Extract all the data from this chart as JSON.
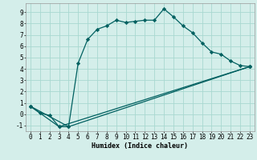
{
  "title": "",
  "xlabel": "Humidex (Indice chaleur)",
  "bg_color": "#d4eeea",
  "grid_color": "#a8d8d0",
  "line_color": "#006060",
  "xlim": [
    -0.5,
    23.5
  ],
  "ylim": [
    -1.5,
    9.8
  ],
  "xticks": [
    0,
    1,
    2,
    3,
    4,
    5,
    6,
    7,
    8,
    9,
    10,
    11,
    12,
    13,
    14,
    15,
    16,
    17,
    18,
    19,
    20,
    21,
    22,
    23
  ],
  "yticks": [
    -1,
    0,
    1,
    2,
    3,
    4,
    5,
    6,
    7,
    8,
    9
  ],
  "series1_x": [
    0,
    1,
    2,
    3,
    4,
    5,
    6,
    7,
    8,
    9,
    10,
    11,
    12,
    13,
    14,
    15,
    16,
    17,
    18,
    19,
    20,
    21,
    22,
    23
  ],
  "series1_y": [
    0.7,
    0.1,
    -0.1,
    -1.1,
    -1.1,
    4.5,
    6.6,
    7.5,
    7.8,
    8.3,
    8.1,
    8.2,
    8.3,
    8.3,
    9.3,
    8.6,
    7.8,
    7.2,
    6.3,
    5.5,
    5.3,
    4.7,
    4.3,
    4.2
  ],
  "series2_x": [
    0,
    3,
    23
  ],
  "series2_y": [
    0.7,
    -1.1,
    4.2
  ],
  "series3_x": [
    0,
    4,
    23
  ],
  "series3_y": [
    0.7,
    -1.1,
    4.2
  ],
  "line_width": 0.9,
  "marker": "D",
  "marker_size": 2.2,
  "tick_fontsize": 5.5,
  "xlabel_fontsize": 6.0
}
